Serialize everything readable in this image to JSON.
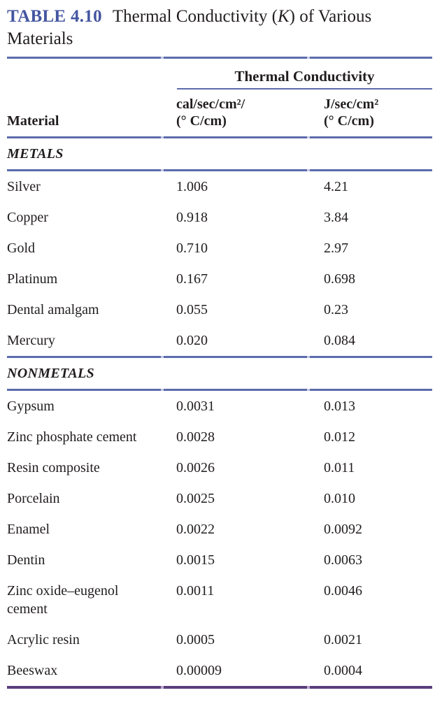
{
  "caption": {
    "label": "TABLE 4.10",
    "title_pre": "Thermal Conductivity (",
    "title_k": "K",
    "title_post": ") of Various Materials"
  },
  "header": {
    "spanner": "Thermal Conductivity",
    "material": "Material",
    "cal_unit_line1": "cal/sec/cm²/",
    "cal_unit_line2": "(° C/cm)",
    "j_unit_line1": "J/sec/cm²",
    "j_unit_line2": "(° C/cm)"
  },
  "sections": [
    {
      "header": "METALS",
      "rows": [
        {
          "material": "Silver",
          "cal": "1.006",
          "j": "4.21"
        },
        {
          "material": "Copper",
          "cal": "0.918",
          "j": "3.84"
        },
        {
          "material": "Gold",
          "cal": "0.710",
          "j": "2.97"
        },
        {
          "material": "Platinum",
          "cal": "0.167",
          "j": "0.698"
        },
        {
          "material": "Dental amalgam",
          "cal": "0.055",
          "j": "0.23"
        },
        {
          "material": "Mercury",
          "cal": "0.020",
          "j": "0.084"
        }
      ]
    },
    {
      "header": "NONMETALS",
      "rows": [
        {
          "material": "Gypsum",
          "cal": "0.0031",
          "j": "0.013"
        },
        {
          "material": "Zinc phosphate cement",
          "cal": "0.0028",
          "j": "0.012"
        },
        {
          "material": "Resin composite",
          "cal": "0.0026",
          "j": "0.011"
        },
        {
          "material": "Porcelain",
          "cal": "0.0025",
          "j": "0.010"
        },
        {
          "material": "Enamel",
          "cal": "0.0022",
          "j": "0.0092"
        },
        {
          "material": "Dentin",
          "cal": "0.0015",
          "j": "0.0063"
        },
        {
          "material": "Zinc oxide–eugenol cement",
          "cal": "0.0011",
          "j": "0.0046"
        },
        {
          "material": "Acrylic resin",
          "cal": "0.0005",
          "j": "0.0021"
        },
        {
          "material": "Beeswax",
          "cal": "0.00009",
          "j": "0.0004"
        }
      ]
    }
  ],
  "colors": {
    "caption_accent": "#4456a0",
    "rule_blue": "#5c6bac",
    "rule_purple": "#5b3d7c",
    "text": "#211d1e"
  }
}
